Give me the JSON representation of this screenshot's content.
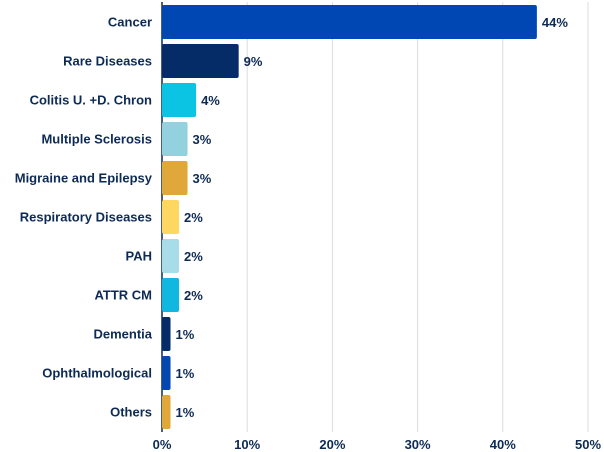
{
  "chart_data": {
    "type": "bar",
    "orientation": "horizontal",
    "title": "",
    "xlabel": "",
    "ylabel": "",
    "xlim": [
      0,
      50
    ],
    "grid": true,
    "categories": [
      "Cancer",
      "Rare Diseases",
      "Colitis U. +D. Chron",
      "Multiple Sclerosis",
      "Migraine and Epilepsy",
      "Respiratory Diseases",
      "PAH",
      "ATTR CM",
      "Dementia",
      "Ophthalmological",
      "Others"
    ],
    "values": [
      44,
      9,
      4,
      3,
      3,
      2,
      2,
      2,
      1,
      1,
      1
    ],
    "value_labels": [
      "44%",
      "9%",
      "4%",
      "3%",
      "3%",
      "2%",
      "2%",
      "2%",
      "1%",
      "1%",
      "1%"
    ],
    "colors": [
      "#0047b3",
      "#062c67",
      "#0bc3e3",
      "#93d1de",
      "#e0a83a",
      "#fdd75f",
      "#a8dce8",
      "#10b8e0",
      "#062c67",
      "#0447b0",
      "#e0a83a"
    ],
    "ticks": [
      0,
      10,
      20,
      30,
      40,
      50
    ],
    "tick_labels": [
      "0%",
      "10%",
      "20%",
      "30%",
      "40%",
      "50%"
    ]
  }
}
